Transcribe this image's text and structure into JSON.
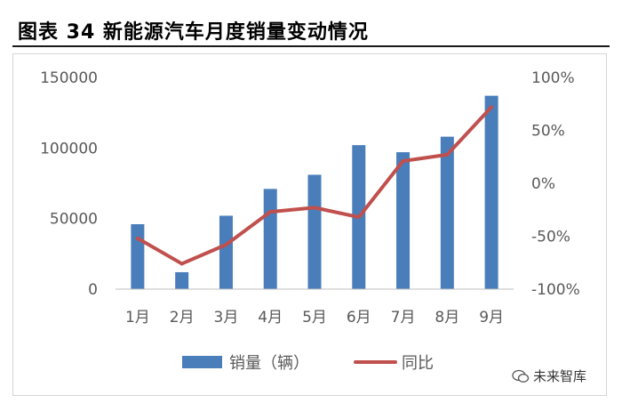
{
  "figure_title": "图表 34 新能源汽车月度销量变动情况",
  "watermark": "未来智库",
  "chart_data": {
    "type": "bar",
    "categories": [
      "1月",
      "2月",
      "3月",
      "4月",
      "5月",
      "6月",
      "7月",
      "8月",
      "9月"
    ],
    "series": [
      {
        "name": "销量（辆）",
        "type": "bar",
        "axis": "left",
        "color": "#4a7ebb",
        "values": [
          46000,
          12000,
          52000,
          71000,
          81000,
          102000,
          97000,
          108000,
          137000
        ]
      },
      {
        "name": "同比",
        "type": "line",
        "axis": "right",
        "color": "#c0504d",
        "values": [
          -52,
          -76,
          -58,
          -27,
          -23,
          -32,
          21,
          27,
          72
        ]
      }
    ],
    "left_axis": {
      "ylim": [
        0,
        150000
      ],
      "ticks": [
        "0",
        "50000",
        "100000",
        "150000"
      ]
    },
    "right_axis": {
      "ylim": [
        -100,
        100
      ],
      "ticks": [
        "-100%",
        "-50%",
        "0%",
        "50%",
        "100%"
      ]
    },
    "grid": false,
    "legend_position": "bottom"
  }
}
